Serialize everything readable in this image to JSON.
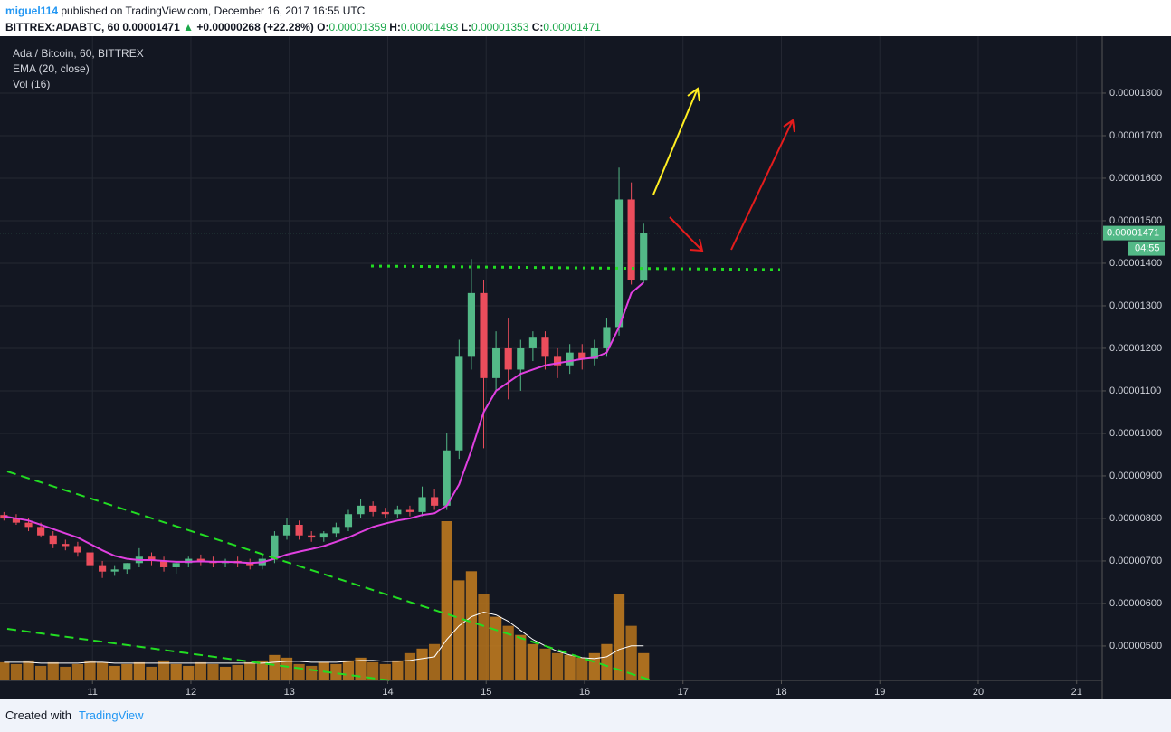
{
  "header": {
    "author": "miguel114",
    "published": "published on TradingView.com, December 16, 2017 16:55 UTC",
    "symbol": "BITTREX:ADABTC, 60",
    "last": "0.00001471",
    "up_arrow": "▲",
    "change": "+0.00000268 (+22.28%)",
    "ohlc": [
      {
        "label": "O:",
        "value": "0.00001359"
      },
      {
        "label": "H:",
        "value": "0.00001493"
      },
      {
        "label": "L:",
        "value": "0.00001353"
      },
      {
        "label": "C:",
        "value": "0.00001471"
      }
    ]
  },
  "chart_data": {
    "type": "candlestick",
    "name": "Ada / Bitcoin, 60, BITTREX",
    "up_color": "#53b987",
    "down_color": "#eb4d5c",
    "x": [
      10.1,
      10.225,
      10.35,
      10.475,
      10.6,
      10.725,
      10.85,
      10.975,
      11.1,
      11.225,
      11.35,
      11.475,
      11.6,
      11.725,
      11.85,
      11.975,
      12.1,
      12.225,
      12.35,
      12.475,
      12.6,
      12.725,
      12.85,
      12.975,
      13.1,
      13.225,
      13.35,
      13.475,
      13.6,
      13.725,
      13.85,
      13.975,
      14.1,
      14.225,
      14.35,
      14.475,
      14.6,
      14.725,
      14.85,
      14.975,
      15.1,
      15.225,
      15.35,
      15.475,
      15.6,
      15.725,
      15.85,
      15.975,
      16.1,
      16.225,
      16.35,
      16.475,
      16.6
    ],
    "open": [
      8.08e-06,
      8e-06,
      7.9e-06,
      7.8e-06,
      7.6e-06,
      7.4e-06,
      7.35e-06,
      7.2e-06,
      6.9e-06,
      6.75e-06,
      6.8e-06,
      6.95e-06,
      7.1e-06,
      7e-06,
      6.85e-06,
      6.95e-06,
      7.05e-06,
      7e-06,
      6.95e-06,
      7e-06,
      6.95e-06,
      6.9e-06,
      7.05e-06,
      7.6e-06,
      7.85e-06,
      7.6e-06,
      7.55e-06,
      7.65e-06,
      7.8e-06,
      8.1e-06,
      8.3e-06,
      8.15e-06,
      8.1e-06,
      8.2e-06,
      8.15e-06,
      8.5e-06,
      8.3e-06,
      9.6e-06,
      1.18e-05,
      1.33e-05,
      1.13e-05,
      1.2e-05,
      1.15e-05,
      1.2e-05,
      1.225e-05,
      1.18e-05,
      1.16e-05,
      1.19e-05,
      1.175e-05,
      1.2e-05,
      1.25e-05,
      1.55e-05,
      1.359e-05
    ],
    "high": [
      8.15e-06,
      8.1e-06,
      8e-06,
      7.9e-06,
      7.7e-06,
      7.5e-06,
      7.45e-06,
      7.3e-06,
      7e-06,
      6.9e-06,
      6.95e-06,
      7.3e-06,
      7.2e-06,
      7.1e-06,
      7e-06,
      7.1e-06,
      7.15e-06,
      7.1e-06,
      7.05e-06,
      7.1e-06,
      7.05e-06,
      7.15e-06,
      7.7e-06,
      8e-06,
      7.95e-06,
      7.7e-06,
      7.7e-06,
      7.9e-06,
      8.2e-06,
      8.45e-06,
      8.4e-06,
      8.25e-06,
      8.3e-06,
      8.3e-06,
      8.75e-06,
      8.7e-06,
      1e-05,
      1.22e-05,
      1.41e-05,
      1.36e-05,
      1.24e-05,
      1.27e-05,
      1.22e-05,
      1.24e-05,
      1.24e-05,
      1.2e-05,
      1.21e-05,
      1.21e-05,
      1.22e-05,
      1.27e-05,
      1.625e-05,
      1.59e-05,
      1.493e-05
    ],
    "low": [
      7.95e-06,
      7.85e-06,
      7.7e-06,
      7.55e-06,
      7.3e-06,
      7.25e-06,
      7.1e-06,
      6.85e-06,
      6.6e-06,
      6.65e-06,
      6.7e-06,
      6.85e-06,
      6.9e-06,
      6.75e-06,
      6.7e-06,
      6.85e-06,
      6.9e-06,
      6.85e-06,
      6.85e-06,
      6.85e-06,
      6.8e-06,
      6.8e-06,
      6.95e-06,
      7.5e-06,
      7.5e-06,
      7.45e-06,
      7.45e-06,
      7.55e-06,
      7.7e-06,
      8e-06,
      8.05e-06,
      8e-06,
      8e-06,
      8.05e-06,
      8.05e-06,
      8.2e-06,
      8.2e-06,
      9.4e-06,
      1.15e-05,
      9.65e-06,
      1.1e-05,
      1.08e-05,
      1.1e-05,
      1.17e-05,
      1.15e-05,
      1.13e-05,
      1.14e-05,
      1.15e-05,
      1.16e-05,
      1.18e-05,
      1.23e-05,
      1.35e-05,
      1.353e-05
    ],
    "close": [
      8e-06,
      7.9e-06,
      7.8e-06,
      7.6e-06,
      7.4e-06,
      7.35e-06,
      7.2e-06,
      6.9e-06,
      6.75e-06,
      6.8e-06,
      6.95e-06,
      7.1e-06,
      7e-06,
      6.85e-06,
      6.95e-06,
      7.05e-06,
      7e-06,
      6.95e-06,
      7e-06,
      6.95e-06,
      6.9e-06,
      7.05e-06,
      7.6e-06,
      7.85e-06,
      7.6e-06,
      7.55e-06,
      7.65e-06,
      7.8e-06,
      8.1e-06,
      8.3e-06,
      8.15e-06,
      8.1e-06,
      8.2e-06,
      8.15e-06,
      8.5e-06,
      8.3e-06,
      9.6e-06,
      1.18e-05,
      1.33e-05,
      1.13e-05,
      1.2e-05,
      1.15e-05,
      1.2e-05,
      1.225e-05,
      1.18e-05,
      1.16e-05,
      1.19e-05,
      1.175e-05,
      1.2e-05,
      1.25e-05,
      1.55e-05,
      1.36e-05,
      1.471e-05
    ],
    "ema": {
      "name": "EMA (20, close)",
      "color": "#e040e0",
      "values": [
        8.05e-06,
        8e-06,
        7.95e-06,
        7.85e-06,
        7.75e-06,
        7.65e-06,
        7.55e-06,
        7.4e-06,
        7.25e-06,
        7.12e-06,
        7.05e-06,
        7.02e-06,
        7.02e-06,
        7e-06,
        6.98e-06,
        6.98e-06,
        6.99e-06,
        6.98e-06,
        6.98e-06,
        6.97e-06,
        6.95e-06,
        6.97e-06,
        7.05e-06,
        7.15e-06,
        7.22e-06,
        7.28e-06,
        7.35e-06,
        7.45e-06,
        7.55e-06,
        7.68e-06,
        7.8e-06,
        7.88e-06,
        7.95e-06,
        8e-06,
        8.08e-06,
        8.12e-06,
        8.3e-06,
        8.8e-06,
        9.6e-06,
        1.05e-05,
        1.1e-05,
        1.12e-05,
        1.14e-05,
        1.15e-05,
        1.16e-05,
        1.165e-05,
        1.17e-05,
        1.175e-05,
        1.178e-05,
        1.19e-05,
        1.25e-05,
        1.33e-05,
        1.355e-05
      ]
    },
    "volume": {
      "name": "Vol (16)",
      "up_color": "#c87f1e",
      "down_color": "#b8741b",
      "ma_color": "#ffffff",
      "values": [
        20,
        18,
        22,
        16,
        20,
        15,
        18,
        22,
        20,
        16,
        18,
        20,
        15,
        22,
        18,
        16,
        20,
        18,
        15,
        17,
        20,
        22,
        28,
        25,
        18,
        16,
        20,
        18,
        22,
        25,
        20,
        18,
        22,
        30,
        35,
        40,
        175,
        110,
        120,
        95,
        70,
        60,
        50,
        40,
        35,
        30,
        28,
        25,
        30,
        40,
        95,
        60,
        30
      ],
      "ma": [
        20,
        20,
        20,
        19,
        19,
        19,
        19,
        20,
        20,
        19,
        19,
        19,
        19,
        19,
        19,
        19,
        19,
        19,
        19,
        19,
        19,
        19,
        20,
        21,
        21,
        20,
        20,
        20,
        21,
        22,
        22,
        21,
        21,
        22,
        24,
        26,
        45,
        60,
        70,
        75,
        72,
        65,
        55,
        45,
        38,
        32,
        28,
        25,
        24,
        26,
        34,
        38,
        38
      ]
    },
    "xlim": [
      10.06,
      21.26
    ],
    "xticks": [
      11,
      12,
      13,
      14,
      15,
      16,
      17,
      18,
      19,
      20,
      21
    ],
    "ylim": [
      4.19e-06,
      1.934e-05
    ],
    "yticks": [
      {
        "value": 5e-06,
        "label": "0.00000500"
      },
      {
        "value": 6e-06,
        "label": "0.00000600"
      },
      {
        "value": 7e-06,
        "label": "0.00000700"
      },
      {
        "value": 8e-06,
        "label": "0.00000800"
      },
      {
        "value": 9e-06,
        "label": "0.00000900"
      },
      {
        "value": 1e-05,
        "label": "0.00001000"
      },
      {
        "value": 1.1e-05,
        "label": "0.00001100"
      },
      {
        "value": 1.2e-05,
        "label": "0.00001200"
      },
      {
        "value": 1.3e-05,
        "label": "0.00001300"
      },
      {
        "value": 1.4e-05,
        "label": "0.00001400"
      },
      {
        "value": 1.5e-05,
        "label": "0.00001500"
      },
      {
        "value": 1.6e-05,
        "label": "0.00001600"
      },
      {
        "value": 1.7e-05,
        "label": "0.00001700"
      },
      {
        "value": 1.8e-05,
        "label": "0.00001800"
      }
    ],
    "grid": true,
    "last_price": {
      "value": 1.471e-05,
      "label": "0.00001471"
    },
    "countdown": "04:55"
  },
  "footer": {
    "created": "Created with",
    "brand": "TradingView"
  }
}
